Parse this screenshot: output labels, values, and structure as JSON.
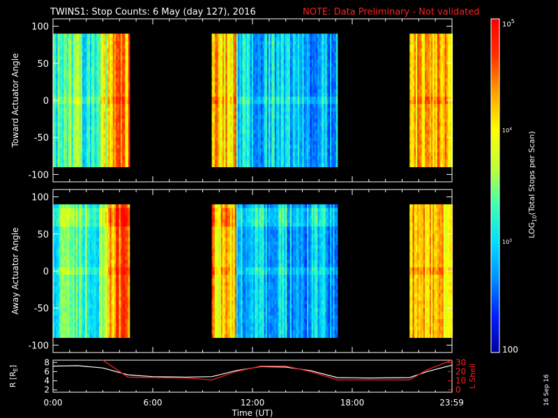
{
  "header": {
    "title": "TWINS1: Stop Counts:  6 May (day 127), 2016",
    "note": "NOTE: Data Preliminary - Not validated",
    "title_color": "#ffffff",
    "note_color": "#ff2020"
  },
  "side_date": "16 Sep 16",
  "chart_data": [
    {
      "type": "heatmap",
      "name": "toward",
      "ylabel": "Toward Actuator Angle",
      "ylim": [
        -110,
        110
      ],
      "yticks": [
        "100",
        "50",
        "0",
        "-50",
        "-100"
      ],
      "ytick_values": [
        100,
        50,
        0,
        -50,
        -100
      ],
      "angle_range": [
        -90,
        90
      ],
      "xlim": [
        0,
        24
      ],
      "data_intervals_hours": [
        [
          0,
          4.55
        ],
        [
          9.55,
          17.1
        ],
        [
          21.45,
          24
        ]
      ],
      "value_scale": "log10 counts, 100 to 100000"
    },
    {
      "type": "heatmap",
      "name": "away",
      "ylabel": "Away Actuator Angle",
      "ylim": [
        -110,
        110
      ],
      "yticks": [
        "100",
        "50",
        "0",
        "-50",
        "-100"
      ],
      "ytick_values": [
        100,
        50,
        0,
        -50,
        -100
      ],
      "angle_range": [
        -90,
        90
      ],
      "xlim": [
        0,
        24
      ],
      "data_intervals_hours": [
        [
          0,
          4.55
        ],
        [
          9.55,
          17.1
        ],
        [
          21.45,
          24
        ]
      ],
      "value_scale": "log10 counts, 100 to 100000"
    },
    {
      "type": "line",
      "name": "orbit",
      "ylabel_left": "R [R",
      "ylabel_left_sub": "E",
      "ylabel_left_end": "]",
      "ylabel_right": "L Shell",
      "left_ylim": [
        1.5,
        8.5
      ],
      "left_ticks": [
        "8",
        "6",
        "4",
        "2"
      ],
      "left_tick_values": [
        8,
        6,
        4,
        2
      ],
      "right_ylim": [
        -2.5,
        32.5
      ],
      "right_ticks": [
        "30",
        "20",
        "10",
        "0"
      ],
      "right_tick_values": [
        30,
        20,
        10,
        0
      ],
      "x": [
        0,
        1.5,
        3,
        4.5,
        6,
        8,
        9.55,
        11,
        12.5,
        14,
        15.5,
        17.1,
        19,
        21.45,
        22.5,
        24
      ],
      "series": [
        {
          "name": "R",
          "axis": "left",
          "color": "#ffffff",
          "values": [
            7.2,
            7.3,
            6.8,
            5.3,
            4.9,
            4.8,
            4.9,
            6.2,
            7.1,
            7.0,
            6.2,
            4.7,
            4.6,
            4.7,
            6.0,
            7.4
          ]
        },
        {
          "name": "L Shell",
          "axis": "right",
          "color": "#e02020",
          "values": [
            null,
            null,
            32.5,
            14,
            13.5,
            13,
            11,
            20,
            26,
            26,
            20,
            11,
            11,
            11,
            22,
            32.5
          ]
        }
      ]
    }
  ],
  "xaxis": {
    "label": "Time (UT)",
    "tick_labels": [
      "0:00",
      "6:00",
      "12:00",
      "18:00",
      "23:59"
    ],
    "tick_values": [
      0,
      6,
      12,
      18,
      23.983
    ]
  },
  "colorbar": {
    "label": "LOG",
    "label_sub": "10",
    "label_end": "(Total Stops per Scan)",
    "top_label": "10",
    "top_exp": "5",
    "label_1e4": "10",
    "exp_1e4": "4",
    "label_1e3": "10",
    "exp_1e3": "3",
    "bottom_label": "100",
    "colors": [
      "#0000a0",
      "#0020ff",
      "#0090ff",
      "#00e0ff",
      "#40ffb0",
      "#c0ff30",
      "#ffff00",
      "#ffa000",
      "#ff3000",
      "#ff0000"
    ]
  }
}
